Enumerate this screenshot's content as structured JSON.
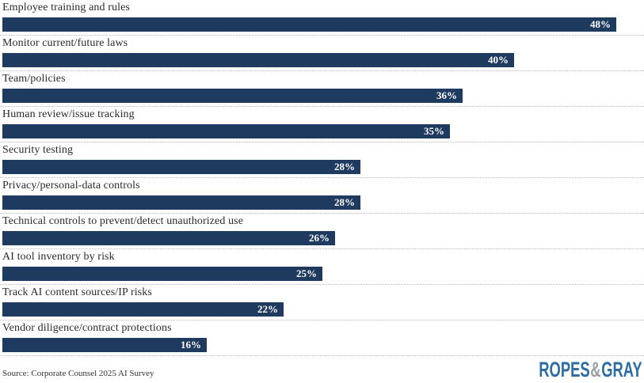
{
  "chart_data": {
    "type": "bar",
    "orientation": "horizontal",
    "title": "",
    "xlabel": "",
    "ylabel": "",
    "xlim": [
      0,
      50
    ],
    "grid": "dotted horizontal row separators",
    "legend": "none",
    "categories": [
      "Employee training and rules",
      "Monitor current/future laws",
      "Team/policies",
      "Human review/issue tracking",
      "Security testing",
      "Privacy/personal-data controls",
      "Technical controls to prevent/detect unauthorized use",
      "AI tool inventory by risk",
      "Track AI content sources/IP risks",
      "Vendor diligence/contract protections"
    ],
    "values": [
      48,
      40,
      36,
      35,
      28,
      28,
      26,
      25,
      22,
      16
    ],
    "value_labels": [
      "48%",
      "40%",
      "36%",
      "35%",
      "28%",
      "28%",
      "26%",
      "25%",
      "22%",
      "16%"
    ],
    "value_suffix": "%",
    "source": "Source: Corporate Counsel 2025 AI Survey"
  },
  "footer": {
    "source": "Source: Corporate Counsel 2025 AI Survey",
    "logo": {
      "part1": "ROPES",
      "amp": "&",
      "part2": "GRAY"
    }
  },
  "colors": {
    "bar": "#1f3a5f",
    "bar_value_text": "#ffffff",
    "category_text": "#2b2b2b",
    "separator": "#b9b9b9",
    "logo_blue": "#2d6da3",
    "logo_gray": "#9aa0a6",
    "background": "#ffffff"
  }
}
